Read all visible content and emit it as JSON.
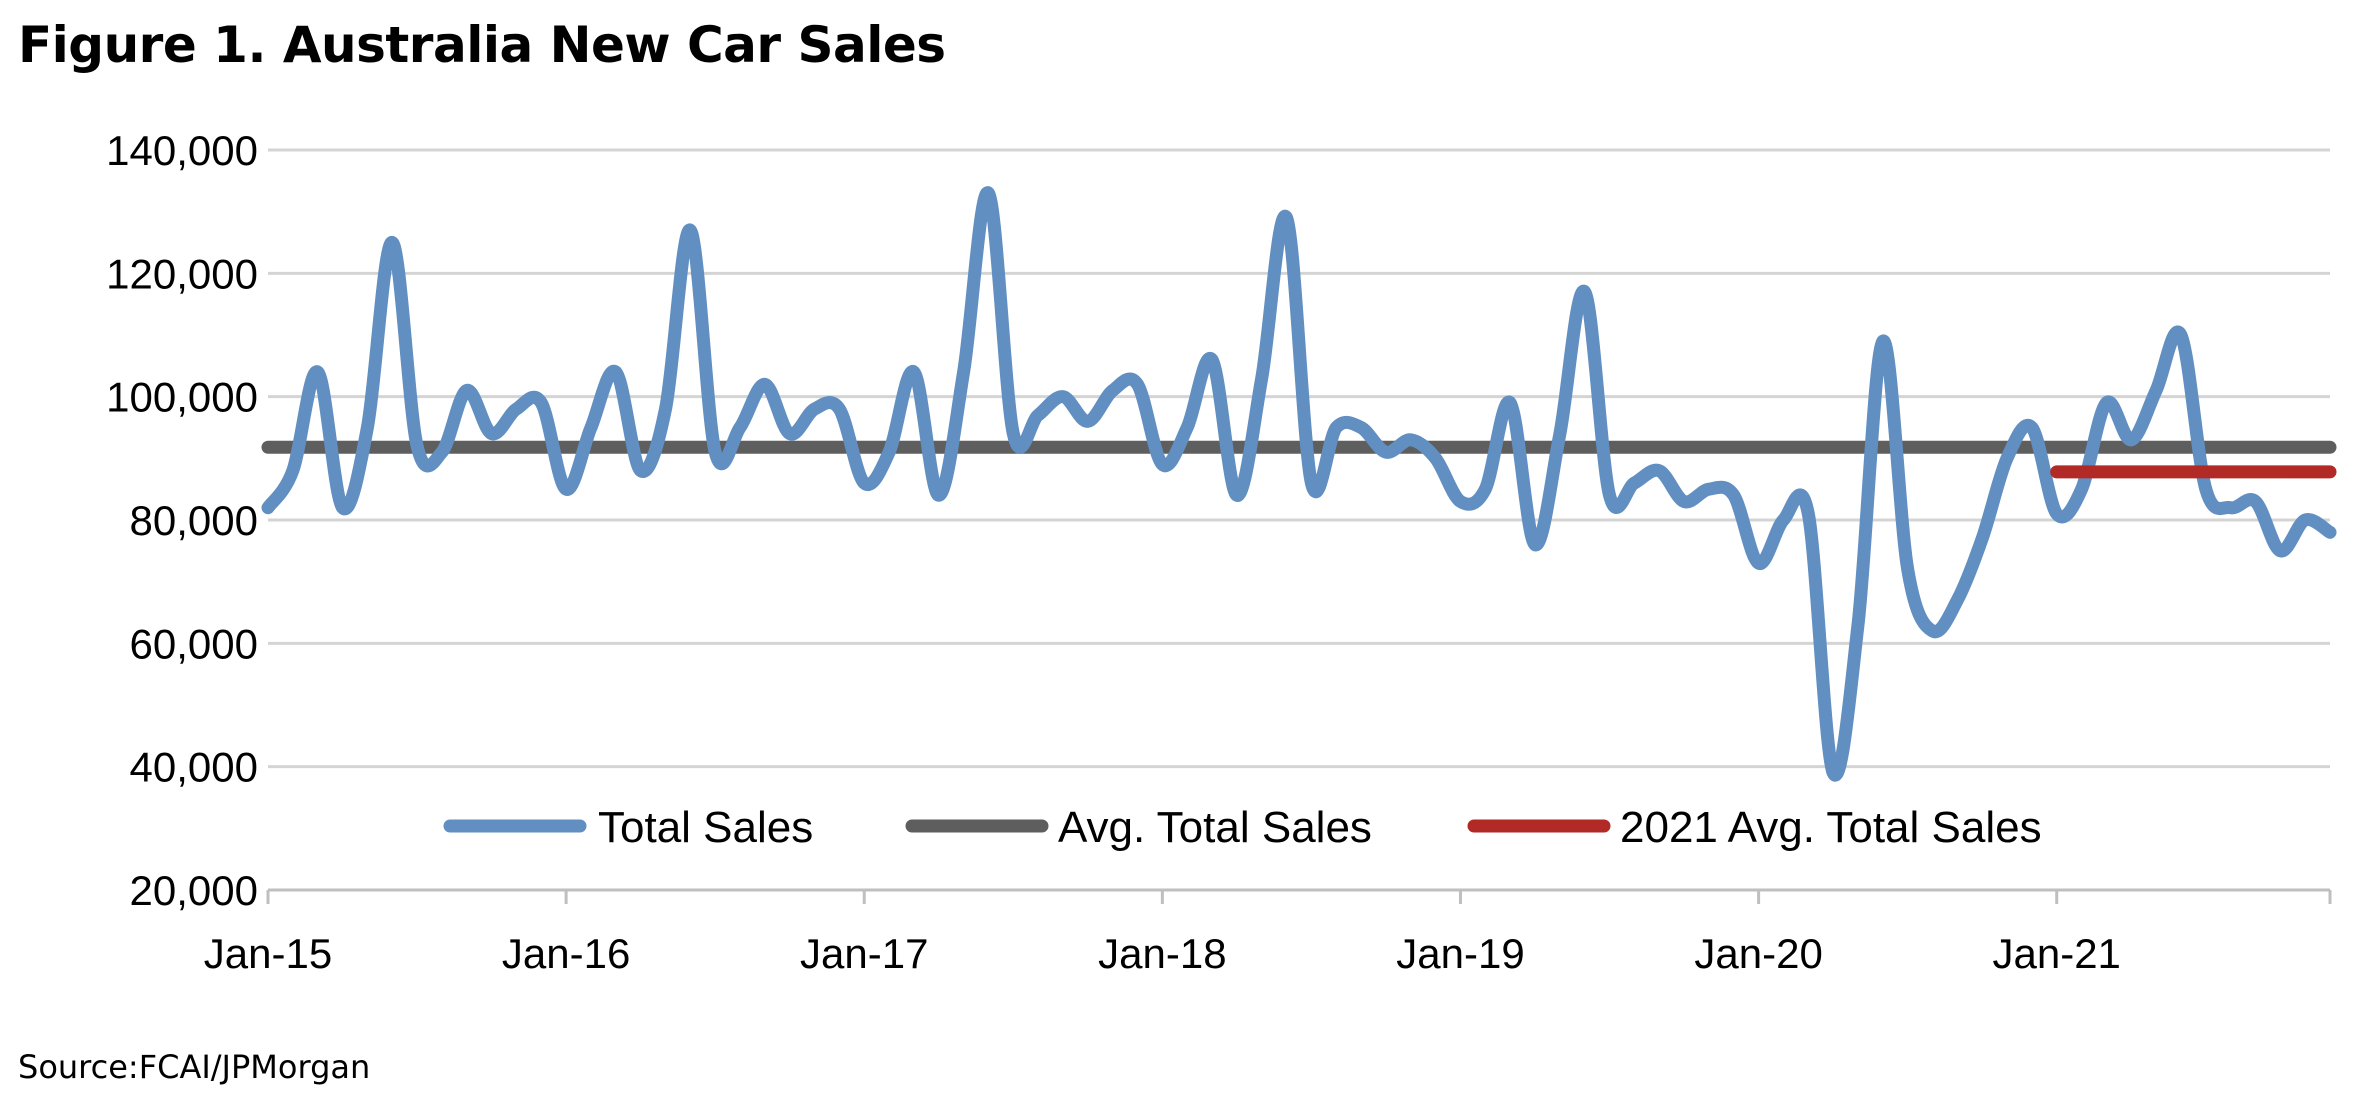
{
  "figure": {
    "title": "Figure 1. Australia New Car Sales",
    "source": "Source:FCAI/JPMorgan"
  },
  "colors": {
    "total_sales": "#628fc1",
    "avg_total_sales": "#5e5e5e",
    "avg_2021": "#b22a26",
    "grid": "#d4d4d4",
    "axis": "#bfbfbf"
  },
  "chart_data": {
    "type": "line",
    "ylim": [
      20000,
      140000
    ],
    "y_ticks": [
      20000,
      40000,
      60000,
      80000,
      100000,
      120000,
      140000
    ],
    "y_tick_labels": [
      "20,000",
      "40,000",
      "60,000",
      "80,000",
      "100,000",
      "120,000",
      "140,000"
    ],
    "x_tick_labels": [
      "Jan-15",
      "Jan-16",
      "Jan-17",
      "Jan-18",
      "Jan-19",
      "Jan-20",
      "Jan-21"
    ],
    "grid": true,
    "legend": "bottom",
    "x_start": "Jan-15",
    "x_end": "Dec-21",
    "series": [
      {
        "name": "Total Sales",
        "values": [
          82000,
          88000,
          104000,
          82000,
          95000,
          125000,
          92000,
          91000,
          101000,
          94000,
          98000,
          99000,
          85000,
          95000,
          104000,
          88000,
          98000,
          127000,
          91000,
          95000,
          102000,
          94000,
          98000,
          98000,
          86000,
          91000,
          104000,
          84000,
          104000,
          133000,
          94000,
          97000,
          100000,
          96000,
          101000,
          102000,
          89000,
          95000,
          106000,
          84000,
          103000,
          129000,
          86000,
          95000,
          95000,
          91000,
          93000,
          90000,
          83000,
          85000,
          99000,
          76000,
          94000,
          117000,
          84000,
          86000,
          88000,
          83000,
          85000,
          84000,
          73000,
          80000,
          81000,
          39000,
          63000,
          109000,
          72000,
          62000,
          67000,
          77000,
          90000,
          95000,
          81000,
          85000,
          99000,
          93000,
          101000,
          110000,
          85000,
          82000,
          83000,
          75000,
          80000,
          78000
        ]
      },
      {
        "name": "Avg. Total Sales",
        "values": [
          91800,
          91800
        ],
        "x_range": [
          "Jan-15",
          "Dec-21"
        ]
      },
      {
        "name": "2021 Avg. Total Sales",
        "values": [
          87800,
          87800
        ],
        "x_range": [
          "Jan-21",
          "Dec-21"
        ]
      }
    ]
  }
}
